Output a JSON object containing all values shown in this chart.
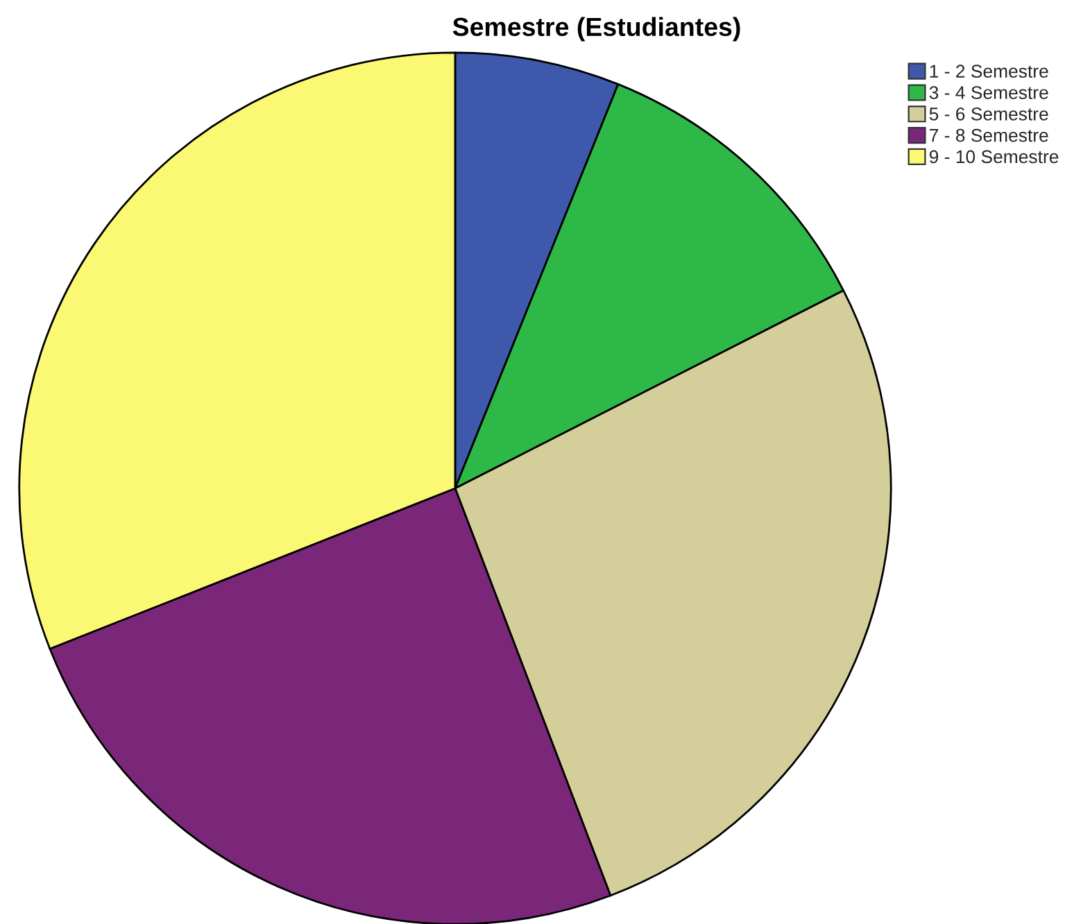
{
  "chart_data": {
    "type": "pie",
    "title": "Semestre (Estudiantes)",
    "categories": [
      "1 - 2 Semestre",
      "3 - 4 Semestre",
      "5 - 6 Semestre",
      "7 - 8 Semestre",
      "9 - 10 Semestre"
    ],
    "values": [
      6.1,
      11.4,
      26.7,
      24.8,
      31.0
    ],
    "colors": [
      "#3e58ac",
      "#2eb848",
      "#d4cf9a",
      "#7b2779",
      "#fbf873"
    ],
    "legend": "top right"
  }
}
